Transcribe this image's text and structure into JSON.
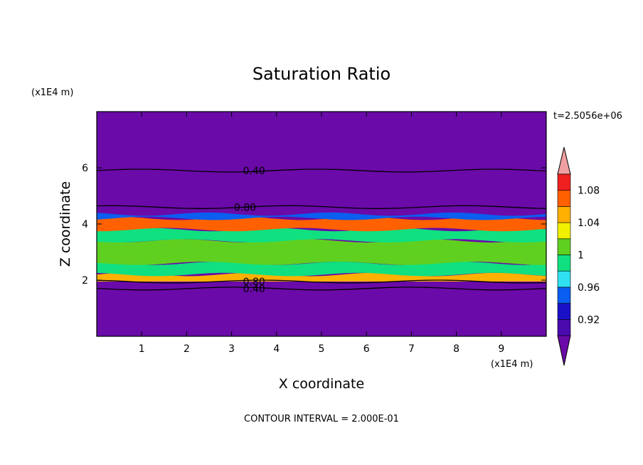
{
  "chart_data": {
    "type": "heatmap",
    "title": "Saturation Ratio",
    "xlabel": "X coordinate",
    "ylabel": "Z coordinate",
    "x_unit": "(x1E4 m)",
    "y_unit": "(x1E4 m)",
    "time_label": "t=2.5056e+06",
    "footer": "CONTOUR INTERVAL = 2.000E-01",
    "xlim": [
      0,
      10
    ],
    "ylim": [
      0,
      8
    ],
    "x_ticks": [
      "1",
      "2",
      "3",
      "4",
      "5",
      "6",
      "7",
      "8",
      "9"
    ],
    "y_ticks": [
      "2",
      "4",
      "6"
    ],
    "background_color": "#6a0aa8",
    "colorbar": {
      "levels": [
        "0.92",
        "0.96",
        "1",
        "1.04",
        "1.08"
      ],
      "bands": [
        {
          "from": 0.9,
          "to": 0.92,
          "color": "#4a0ab0"
        },
        {
          "from": 0.92,
          "to": 0.94,
          "color": "#1a10c8"
        },
        {
          "from": 0.94,
          "to": 0.96,
          "color": "#0a5ef0"
        },
        {
          "from": 0.96,
          "to": 0.98,
          "color": "#30e0f0"
        },
        {
          "from": 0.98,
          "to": 1.0,
          "color": "#10e080"
        },
        {
          "from": 1.0,
          "to": 1.02,
          "color": "#60d020"
        },
        {
          "from": 1.02,
          "to": 1.04,
          "color": "#f0f000"
        },
        {
          "from": 1.04,
          "to": 1.06,
          "color": "#ffb000"
        },
        {
          "from": 1.06,
          "to": 1.08,
          "color": "#ff6000"
        },
        {
          "from": 1.08,
          "to": 1.1,
          "color": "#f02020"
        }
      ],
      "under_color": "#6a0aa8",
      "over_color": "#f0a0a0"
    },
    "layers": [
      {
        "z_bottom": 1.95,
        "z_top": 2.2,
        "value": 1.05
      },
      {
        "z_bottom": 2.2,
        "z_top": 2.6,
        "value": 0.99
      },
      {
        "z_bottom": 2.6,
        "z_top": 3.4,
        "value": 1.01
      },
      {
        "z_bottom": 3.4,
        "z_top": 3.8,
        "value": 0.99
      },
      {
        "z_bottom": 3.8,
        "z_top": 4.2,
        "value": 1.06
      },
      {
        "z_bottom": 4.2,
        "z_top": 4.35,
        "value": 0.95
      }
    ],
    "contours": [
      {
        "level": "0.40",
        "z": 5.9,
        "label_x": 3.5
      },
      {
        "level": "0.80",
        "z": 4.6,
        "label_x": 3.3
      },
      {
        "level": "0.80",
        "z": 1.95,
        "label_x": 3.5
      },
      {
        "level": "0.40",
        "z": 1.7,
        "label_x": 3.5
      }
    ]
  }
}
